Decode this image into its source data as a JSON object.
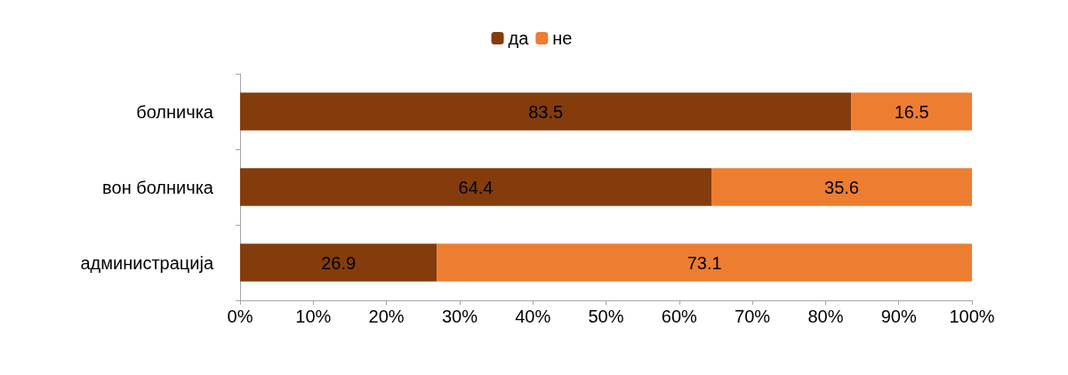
{
  "chart_data": {
    "type": "bar",
    "orientation": "horizontal",
    "stacked": true,
    "categories": [
      "болничка",
      "вон болничка",
      "администрација"
    ],
    "series": [
      {
        "name": "да",
        "color": "#843c0c",
        "values": [
          83.5,
          64.4,
          26.9
        ]
      },
      {
        "name": "не",
        "color": "#ed7d31",
        "values": [
          16.5,
          35.6,
          73.1
        ]
      }
    ],
    "xlim": [
      0,
      100
    ],
    "xticks": [
      {
        "value": 0,
        "label": "0%"
      },
      {
        "value": 10,
        "label": "10%"
      },
      {
        "value": 20,
        "label": "20%"
      },
      {
        "value": 30,
        "label": "30%"
      },
      {
        "value": 40,
        "label": "40%"
      },
      {
        "value": 50,
        "label": "50%"
      },
      {
        "value": 60,
        "label": "60%"
      },
      {
        "value": 70,
        "label": "70%"
      },
      {
        "value": 80,
        "label": "80%"
      },
      {
        "value": 90,
        "label": "90%"
      },
      {
        "value": 100,
        "label": "100%"
      }
    ],
    "data_labels": true,
    "legend": "top",
    "grid": false
  }
}
